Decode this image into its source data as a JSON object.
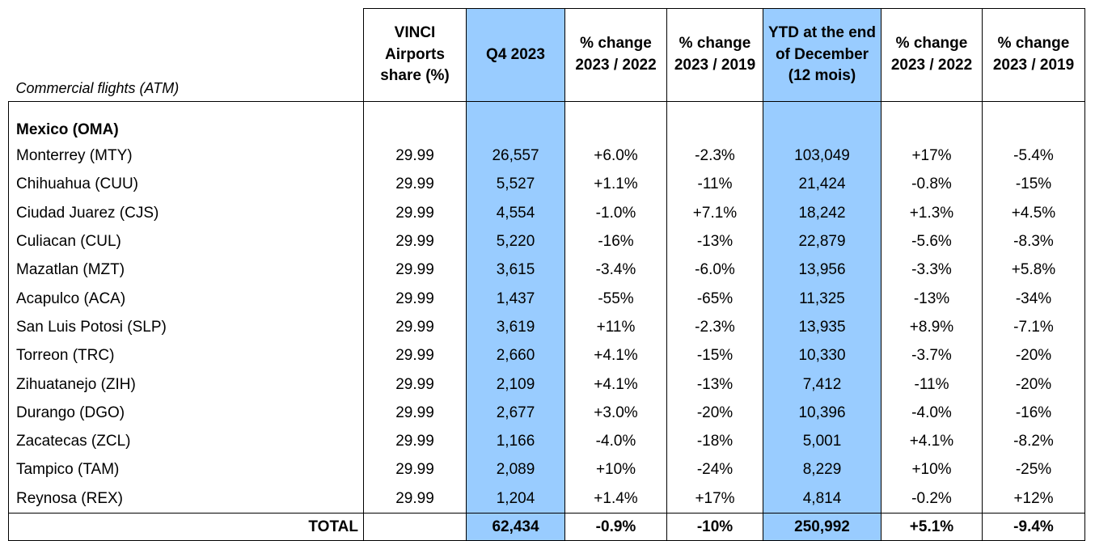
{
  "table": {
    "corner_label": "Commercial flights (ATM)",
    "headers": [
      "VINCI Airports share (%)",
      "Q4 2023",
      "% change 2023 / 2022",
      "% change 2023 / 2019",
      "YTD at the end of December (12 mois)",
      "% change 2023 / 2022",
      "% change 2023 / 2019"
    ],
    "highlight_color": "#99CCFF",
    "group_label": "Mexico (OMA)",
    "rows": [
      {
        "name": "Monterrey (MTY)",
        "cells": [
          "29.99",
          "26,557",
          "+6.0%",
          "-2.3%",
          "103,049",
          "+17%",
          "-5.4%"
        ]
      },
      {
        "name": "Chihuahua (CUU)",
        "cells": [
          "29.99",
          "5,527",
          "+1.1%",
          "-11%",
          "21,424",
          "-0.8%",
          "-15%"
        ]
      },
      {
        "name": "Ciudad Juarez (CJS)",
        "cells": [
          "29.99",
          "4,554",
          "-1.0%",
          "+7.1%",
          "18,242",
          "+1.3%",
          "+4.5%"
        ]
      },
      {
        "name": "Culiacan (CUL)",
        "cells": [
          "29.99",
          "5,220",
          "-16%",
          "-13%",
          "22,879",
          "-5.6%",
          "-8.3%"
        ]
      },
      {
        "name": "Mazatlan (MZT)",
        "cells": [
          "29.99",
          "3,615",
          "-3.4%",
          "-6.0%",
          "13,956",
          "-3.3%",
          "+5.8%"
        ]
      },
      {
        "name": "Acapulco (ACA)",
        "cells": [
          "29.99",
          "1,437",
          "-55%",
          "-65%",
          "11,325",
          "-13%",
          "-34%"
        ]
      },
      {
        "name": "San Luis Potosi (SLP)",
        "cells": [
          "29.99",
          "3,619",
          "+11%",
          "-2.3%",
          "13,935",
          "+8.9%",
          "-7.1%"
        ]
      },
      {
        "name": "Torreon (TRC)",
        "cells": [
          "29.99",
          "2,660",
          "+4.1%",
          "-15%",
          "10,330",
          "-3.7%",
          "-20%"
        ]
      },
      {
        "name": "Zihuatanejo (ZIH)",
        "cells": [
          "29.99",
          "2,109",
          "+4.1%",
          "-13%",
          "7,412",
          "-11%",
          "-20%"
        ]
      },
      {
        "name": "Durango (DGO)",
        "cells": [
          "29.99",
          "2,677",
          "+3.0%",
          "-20%",
          "10,396",
          "-4.0%",
          "-16%"
        ]
      },
      {
        "name": "Zacatecas (ZCL)",
        "cells": [
          "29.99",
          "1,166",
          "-4.0%",
          "-18%",
          "5,001",
          "+4.1%",
          "-8.2%"
        ]
      },
      {
        "name": "Tampico (TAM)",
        "cells": [
          "29.99",
          "2,089",
          "+10%",
          "-24%",
          "8,229",
          "+10%",
          "-25%"
        ]
      },
      {
        "name": "Reynosa (REX)",
        "cells": [
          "29.99",
          "1,204",
          "+1.4%",
          "+17%",
          "4,814",
          "-0.2%",
          "+12%"
        ]
      }
    ],
    "total": {
      "name": "TOTAL",
      "cells": [
        "",
        "62,434",
        "-0.9%",
        "-10%",
        "250,992",
        "+5.1%",
        "-9.4%"
      ]
    }
  }
}
